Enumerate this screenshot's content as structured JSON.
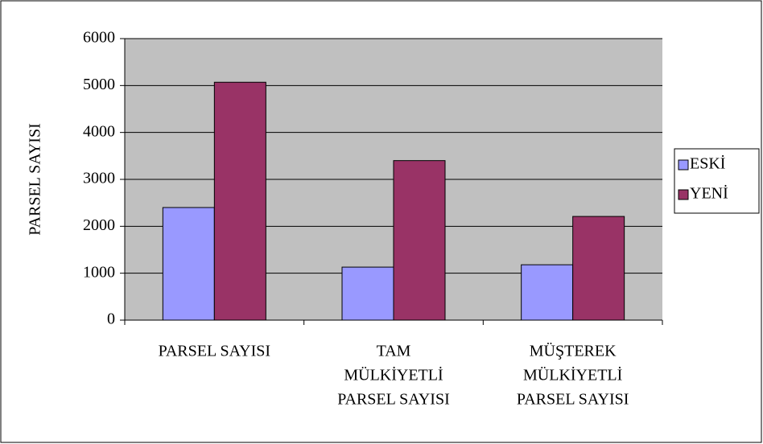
{
  "chart_data": {
    "type": "bar",
    "y_label": "PARSEL SAYISI",
    "categories": [
      [
        "PARSEL SAYISI"
      ],
      [
        "TAM",
        "MÜLKİYETLİ",
        "PARSEL SAYISI"
      ],
      [
        "MÜŞTEREK",
        "MÜLKİYETLİ",
        "PARSEL SAYISI"
      ]
    ],
    "series": [
      {
        "name": "ESKİ",
        "color": "#9999ff",
        "values": [
          2400,
          1130,
          1180
        ]
      },
      {
        "name": "YENİ",
        "color": "#993366",
        "values": [
          5070,
          3400,
          2210
        ]
      }
    ],
    "ylim": [
      0,
      6000
    ],
    "yticks": [
      0,
      1000,
      2000,
      3000,
      4000,
      5000,
      6000
    ],
    "grid": true,
    "legend": "right",
    "plot_background": "#c0c0c0"
  }
}
